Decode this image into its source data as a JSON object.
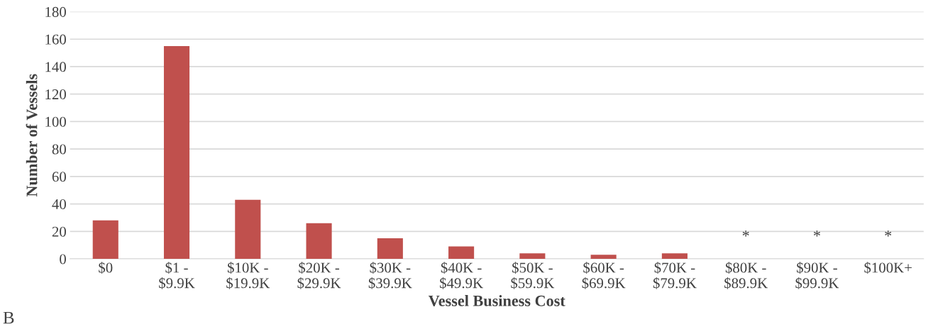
{
  "chart_data": {
    "type": "bar",
    "xlabel": "Vessel Business Cost",
    "ylabel": "Number of Vessels",
    "categories": [
      "$0",
      "$1 -\n$9.9K",
      "$10K -\n$19.9K",
      "$20K -\n$29.9K",
      "$30K -\n$39.9K",
      "$40K -\n$49.9K",
      "$50K -\n$59.9K",
      "$60K -\n$69.9K",
      "$70K -\n$79.9K",
      "$80K -\n$89.9K",
      "$90K -\n$99.9K",
      "$100K+"
    ],
    "values": [
      28,
      155,
      43,
      26,
      15,
      9,
      4,
      3,
      4,
      null,
      null,
      null
    ],
    "color": "#c0504d",
    "ylim": [
      0,
      180
    ],
    "yticks": [
      0,
      20,
      40,
      60,
      80,
      100,
      120,
      140,
      160,
      180
    ],
    "grid": "y",
    "legend": false,
    "value_labels": [
      null,
      null,
      null,
      null,
      null,
      null,
      null,
      null,
      null,
      "*",
      "*",
      "*"
    ],
    "annotations": [
      "B"
    ]
  }
}
